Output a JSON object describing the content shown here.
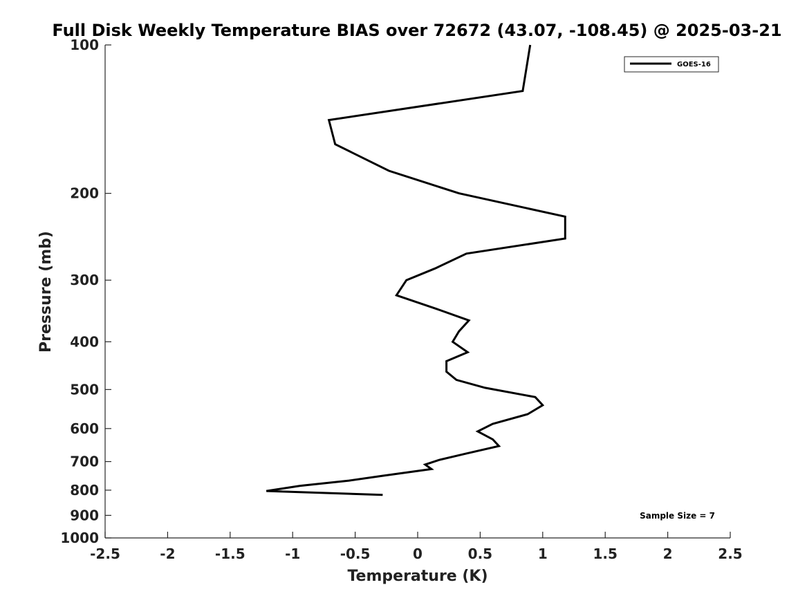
{
  "chart_data": {
    "type": "line",
    "title": "Full Disk Weekly Temperature BIAS over 72672 (43.07, -108.45) @ 2025-03-21",
    "xlabel": "Temperature (K)",
    "ylabel": "Pressure (mb)",
    "xlim": [
      -2.5,
      2.5
    ],
    "ylim": [
      100,
      1000
    ],
    "y_scale": "log",
    "y_reversed": true,
    "x_ticks": [
      -2.5,
      -2,
      -1.5,
      -1,
      -0.5,
      0,
      0.5,
      1,
      1.5,
      2,
      2.5
    ],
    "x_tick_labels": [
      "-2.5",
      "-2",
      "-1.5",
      "-1",
      "-0.5",
      "0",
      "0.5",
      "1",
      "1.5",
      "2",
      "2.5"
    ],
    "y_ticks": [
      100,
      200,
      300,
      400,
      500,
      600,
      700,
      800,
      900,
      1000
    ],
    "y_tick_labels": [
      "100",
      "200",
      "300",
      "400",
      "500",
      "600",
      "700",
      "800",
      "900",
      "1000"
    ],
    "grid": false,
    "legend_position": "top-right",
    "series": [
      {
        "name": "GOES-16",
        "color": "#000000",
        "points": [
          {
            "x": 0.9,
            "p": 100
          },
          {
            "x": 0.84,
            "p": 124
          },
          {
            "x": -0.71,
            "p": 142
          },
          {
            "x": -0.66,
            "p": 159
          },
          {
            "x": -0.23,
            "p": 180
          },
          {
            "x": 0.33,
            "p": 200
          },
          {
            "x": 1.18,
            "p": 223
          },
          {
            "x": 1.18,
            "p": 247
          },
          {
            "x": 0.39,
            "p": 265
          },
          {
            "x": 0.14,
            "p": 284
          },
          {
            "x": -0.09,
            "p": 300
          },
          {
            "x": -0.17,
            "p": 322
          },
          {
            "x": 0.15,
            "p": 343
          },
          {
            "x": 0.41,
            "p": 362
          },
          {
            "x": 0.33,
            "p": 381
          },
          {
            "x": 0.28,
            "p": 400
          },
          {
            "x": 0.4,
            "p": 420
          },
          {
            "x": 0.23,
            "p": 438
          },
          {
            "x": 0.23,
            "p": 460
          },
          {
            "x": 0.31,
            "p": 478
          },
          {
            "x": 0.54,
            "p": 496
          },
          {
            "x": 0.94,
            "p": 518
          },
          {
            "x": 1.0,
            "p": 538
          },
          {
            "x": 0.88,
            "p": 561
          },
          {
            "x": 0.6,
            "p": 587
          },
          {
            "x": 0.48,
            "p": 608
          },
          {
            "x": 0.6,
            "p": 631
          },
          {
            "x": 0.65,
            "p": 651
          },
          {
            "x": 0.38,
            "p": 675
          },
          {
            "x": 0.17,
            "p": 695
          },
          {
            "x": 0.06,
            "p": 710
          },
          {
            "x": 0.11,
            "p": 725
          },
          {
            "x": -0.28,
            "p": 748
          },
          {
            "x": -0.55,
            "p": 765
          },
          {
            "x": -0.94,
            "p": 784
          },
          {
            "x": -1.21,
            "p": 803
          },
          {
            "x": -0.28,
            "p": 818
          }
        ]
      }
    ],
    "annotations": [
      {
        "text": "Sample Size = 7",
        "position": "bottom-right"
      }
    ]
  }
}
